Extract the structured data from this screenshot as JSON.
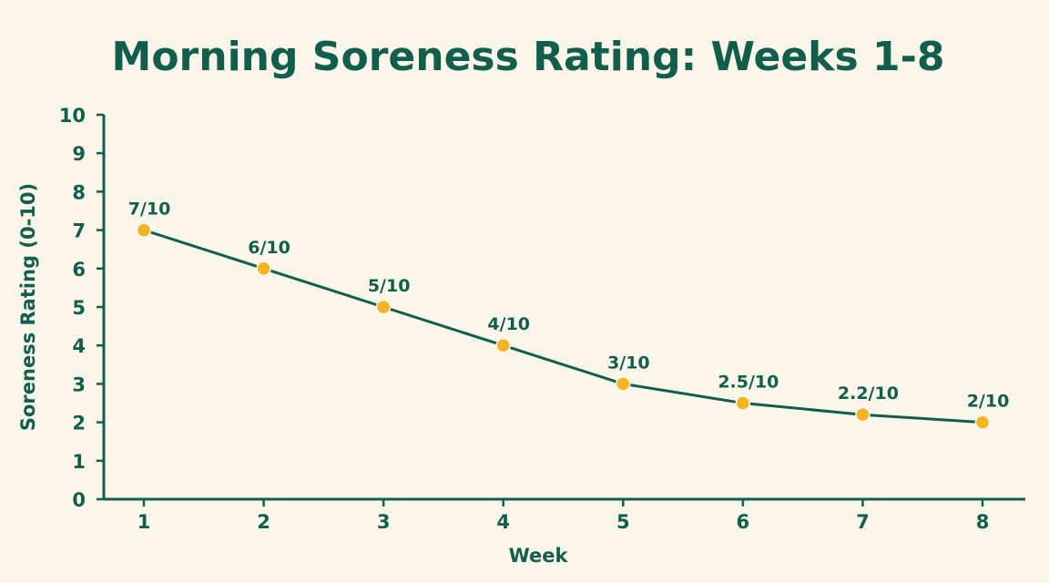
{
  "chart_data": {
    "type": "line",
    "title": "Morning Soreness Rating: Weeks 1-8",
    "xlabel": "Week",
    "ylabel": "Soreness Rating (0-10)",
    "x": [
      1,
      2,
      3,
      4,
      5,
      6,
      7,
      8
    ],
    "x_tick_labels": [
      "1",
      "2",
      "3",
      "4",
      "5",
      "6",
      "7",
      "8"
    ],
    "y_tick_labels": [
      "0",
      "1",
      "2",
      "3",
      "4",
      "5",
      "6",
      "7",
      "8",
      "9",
      "10"
    ],
    "ylim": [
      0,
      10
    ],
    "grid": false,
    "series": [
      {
        "values": [
          7,
          6,
          5,
          4,
          3,
          2.5,
          2.2,
          2
        ],
        "labels": [
          "7/10",
          "6/10",
          "5/10",
          "4/10",
          "3/10",
          "2.5/10",
          "2.2/10",
          "2/10"
        ]
      }
    ],
    "colors": {
      "line": "#115e4d",
      "marker": "#f4b424",
      "text": "#115e4d",
      "background": "#fbf6ea"
    }
  }
}
